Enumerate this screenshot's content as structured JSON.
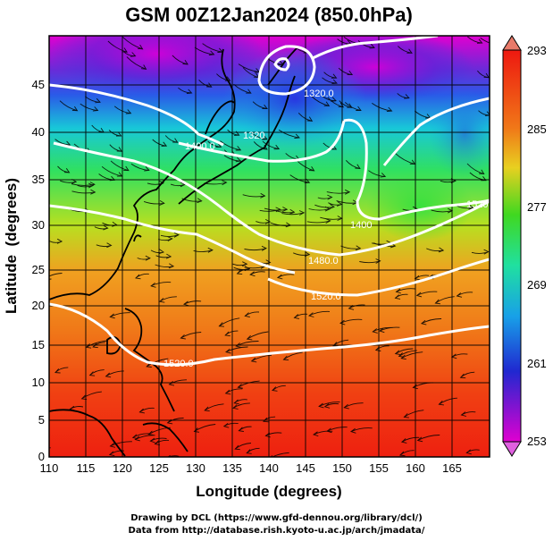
{
  "title": "GSM 00Z12Jan2024 (850.0hPa)",
  "xlabel": "Longitude (degrees)",
  "ylabel": "Latitude  (degrees)",
  "x_ticks": [
    "110",
    "115",
    "120",
    "125",
    "130",
    "135",
    "140",
    "145",
    "150",
    "155",
    "160",
    "165"
  ],
  "y_ticks": [
    "0",
    "5",
    "10",
    "15",
    "20",
    "25",
    "30",
    "35",
    "40",
    "45"
  ],
  "colorbar_ticks": [
    "253",
    "261",
    "269",
    "277",
    "285",
    "293"
  ],
  "contour_labels": [
    "1400.0",
    "1320",
    "1480.0",
    "1520.0",
    "1320.0",
    "1400",
    "1520.0",
    "1520"
  ],
  "credits": [
    "Drawing by DCL (https://www.gfd-dennou.org/library/dcl/)",
    "Data from http://database.rish.kyoto-u.ac.jp/arch/jmadata/"
  ],
  "colors": {
    "cold": "#e000d0",
    "cool": "#2a32d8",
    "mid": "#28d828",
    "warm": "#f08018",
    "hot": "#f02010",
    "contour": "#ffffff",
    "coast": "#000000"
  },
  "chart_data": {
    "type": "heatmap",
    "title": "GSM 00Z12Jan2024 (850.0hPa)",
    "xlabel": "Longitude (degrees)",
    "ylabel": "Latitude  (degrees)",
    "xlim": [
      110,
      170
    ],
    "ylim": [
      0,
      50
    ],
    "colorbar_range": [
      253,
      293
    ],
    "colorbar_ticks": [
      253,
      261,
      269,
      277,
      285,
      293
    ],
    "contour_levels": [
      1320,
      1400,
      1480,
      1520
    ],
    "overlay": "streamlines"
  }
}
